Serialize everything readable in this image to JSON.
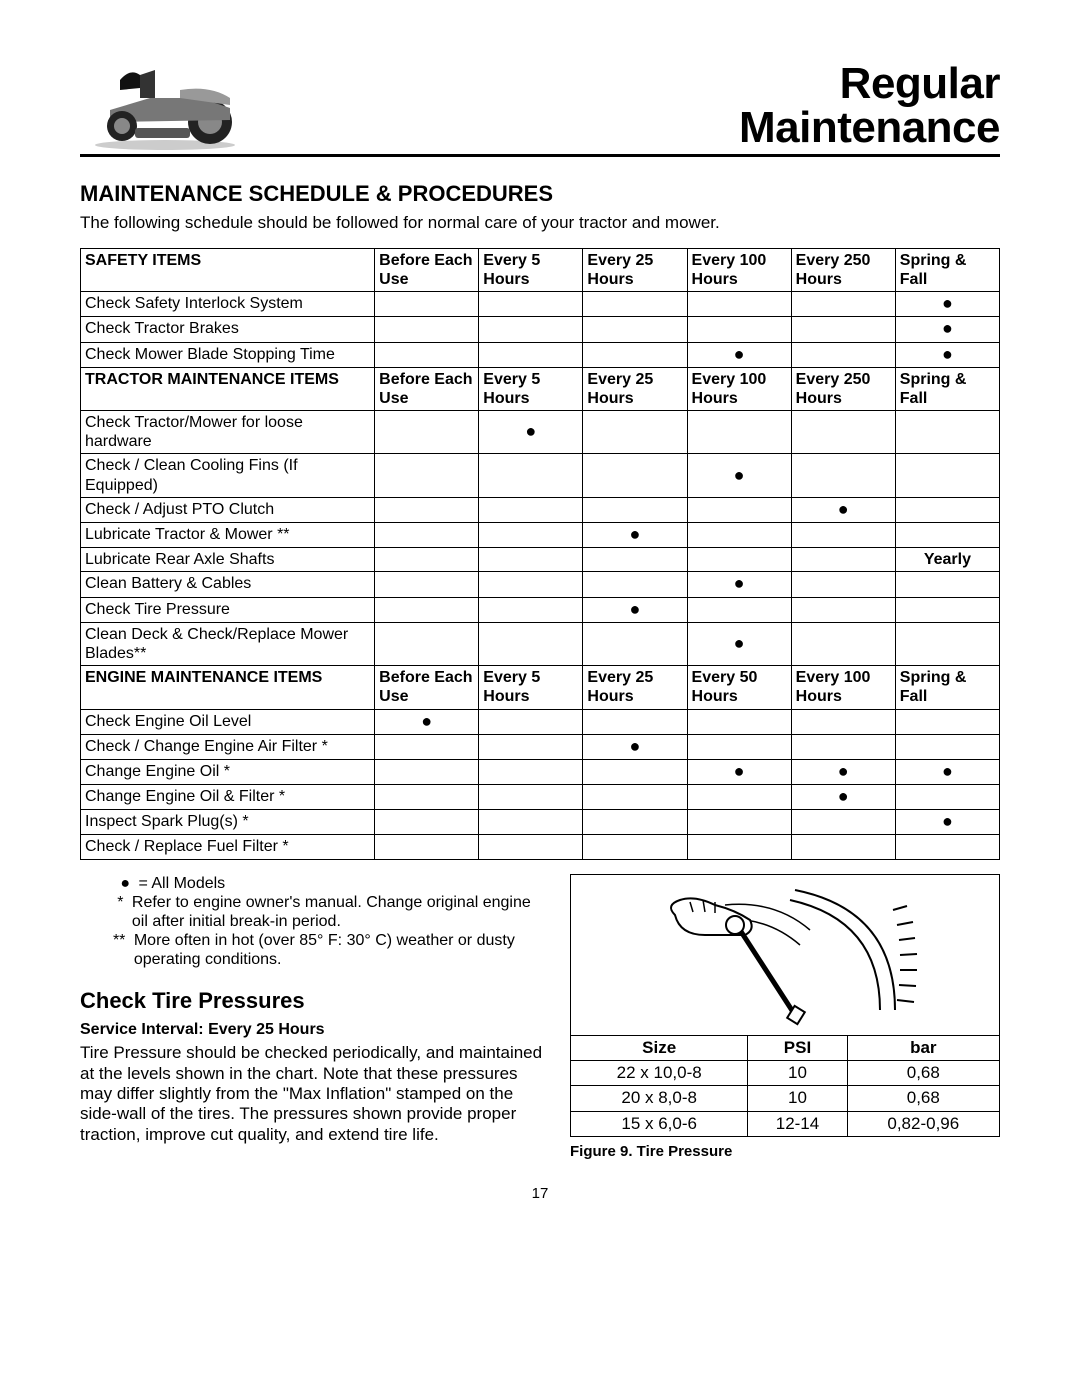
{
  "header": {
    "title_line1": "Regular",
    "title_line2": "Maintenance"
  },
  "section_title": "MAINTENANCE SCHEDULE & PROCEDURES",
  "intro": "The following schedule should be followed for normal care of your tractor and mower.",
  "columns": {
    "before": "Before Each Use",
    "every5": "Every 5 Hours",
    "every25": "Every 25 Hours",
    "every100": "Every 100 Hours",
    "every250": "Every 250 Hours",
    "every50": "Every 50 Hours",
    "spring_fall": "Spring & Fall"
  },
  "safety": {
    "header": "SAFETY ITEMS",
    "cols": [
      "before",
      "every5",
      "every25",
      "every100",
      "every250",
      "spring_fall"
    ],
    "rows": [
      {
        "item": "Check Safety Interlock System",
        "marks": [
          "",
          "",
          "",
          "",
          "",
          "●"
        ]
      },
      {
        "item": "Check Tractor Brakes",
        "marks": [
          "",
          "",
          "",
          "",
          "",
          "●"
        ]
      },
      {
        "item": "Check Mower Blade Stopping Time",
        "marks": [
          "",
          "",
          "",
          "●",
          "",
          "●"
        ]
      }
    ]
  },
  "tractor": {
    "header": "TRACTOR MAINTENANCE ITEMS",
    "cols": [
      "before",
      "every5",
      "every25",
      "every100",
      "every250",
      "spring_fall"
    ],
    "rows": [
      {
        "item": "Check Tractor/Mower for loose hardware",
        "marks": [
          "",
          "●",
          "",
          "",
          "",
          ""
        ]
      },
      {
        "item": "Check / Clean Cooling Fins (If Equipped)",
        "marks": [
          "",
          "",
          "",
          "●",
          "",
          ""
        ]
      },
      {
        "item": "Check / Adjust PTO Clutch",
        "marks": [
          "",
          "",
          "",
          "",
          "●",
          ""
        ]
      },
      {
        "item": "Lubricate Tractor & Mower **",
        "marks": [
          "",
          "",
          "●",
          "",
          "",
          ""
        ]
      },
      {
        "item": "Lubricate Rear Axle Shafts",
        "marks": [
          "",
          "",
          "",
          "",
          "",
          "Yearly"
        ],
        "last_bold": true
      },
      {
        "item": "Clean Battery & Cables",
        "marks": [
          "",
          "",
          "",
          "●",
          "",
          ""
        ]
      },
      {
        "item": "Check Tire Pressure",
        "marks": [
          "",
          "",
          "●",
          "",
          "",
          ""
        ]
      },
      {
        "item": "Clean Deck & Check/Replace Mower Blades**",
        "marks": [
          "",
          "",
          "",
          "●",
          "",
          ""
        ]
      }
    ]
  },
  "engine": {
    "header": "ENGINE MAINTENANCE ITEMS",
    "cols": [
      "before",
      "every5",
      "every25",
      "every50",
      "every100",
      "spring_fall"
    ],
    "rows": [
      {
        "item": "Check Engine Oil Level",
        "marks": [
          "●",
          "",
          "",
          "",
          "",
          ""
        ]
      },
      {
        "item": "Check / Change Engine Air Filter *",
        "marks": [
          "",
          "",
          "●",
          "",
          "",
          ""
        ]
      },
      {
        "item": "Change Engine Oil *",
        "marks": [
          "",
          "",
          "",
          "●",
          "●",
          "●"
        ]
      },
      {
        "item": "Change Engine Oil & Filter *",
        "marks": [
          "",
          "",
          "",
          "",
          "●",
          ""
        ]
      },
      {
        "item": "Inspect Spark Plug(s) *",
        "marks": [
          "",
          "",
          "",
          "",
          "",
          "●"
        ]
      },
      {
        "item": "Check / Replace Fuel Filter *",
        "marks": [
          "",
          "",
          "",
          "",
          "",
          ""
        ]
      }
    ]
  },
  "legend": {
    "l1": "= All Models",
    "l2": "Refer to engine owner's manual.  Change original engine oil after initial break-in period.",
    "l3": "More often in hot (over 85° F: 30° C) weather or dusty operating conditions."
  },
  "tire_section": {
    "title": "Check Tire Pressures",
    "interval": "Service Interval: Every 25 Hours",
    "body": "Tire Pressure should be checked periodically, and maintained at the levels shown in the chart. Note that these pressures may differ slightly from the \"Max Inflation\" stamped on the side-wall of the tires. The pressures shown provide proper traction, improve cut quality, and extend tire life.",
    "table": {
      "headers": [
        "Size",
        "PSI",
        "bar"
      ],
      "rows": [
        [
          "22 x 10,0-8",
          "10",
          "0,68"
        ],
        [
          "20 x 8,0-8",
          "10",
          "0,68"
        ],
        [
          "15 x 6,0-6",
          "12-14",
          "0,82-0,96"
        ]
      ]
    },
    "caption": "Figure 9. Tire Pressure"
  },
  "page_number": "17",
  "colors": {
    "text": "#000000",
    "background": "#ffffff",
    "table_border": "#000000"
  }
}
